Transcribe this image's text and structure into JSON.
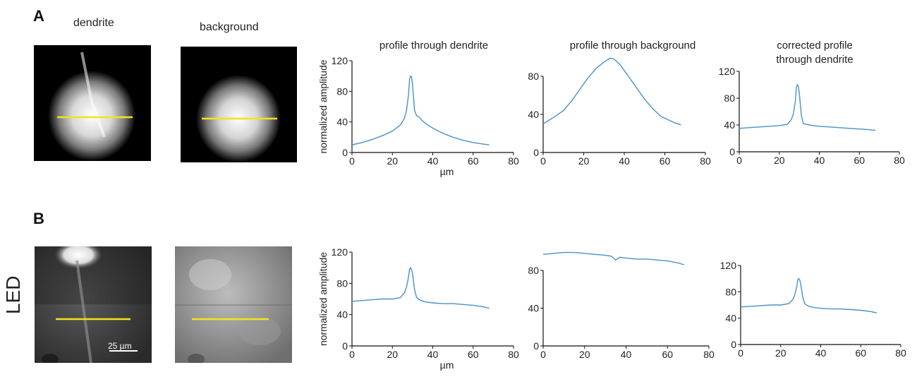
{
  "panels": {
    "A": {
      "letter": "A",
      "image_labels": [
        "dendrite",
        "background"
      ],
      "chart_titles": [
        "profile through dendrite",
        "profile through background",
        "corrected profile through dendrite"
      ],
      "side_label": ""
    },
    "B": {
      "letter": "B",
      "side_label": "LED",
      "scalebar": "25 µm"
    }
  },
  "colors": {
    "line": "#4a90c8",
    "marker": "#f2e21e",
    "axis": "#111111"
  },
  "chart_data": [
    {
      "type": "line",
      "title": "profile through dendrite",
      "xlabel": "µm",
      "ylabel": "normalized amplitude",
      "xlim": [
        0,
        80
      ],
      "ylim": [
        0,
        120
      ],
      "xticks": [
        0,
        20,
        40,
        60,
        80
      ],
      "yticks": [
        0,
        40,
        80,
        120
      ],
      "series": [
        {
          "x": [
            0,
            5,
            10,
            15,
            20,
            24,
            26,
            27,
            28,
            28.5,
            29,
            29.5,
            30,
            31,
            32,
            33,
            35,
            38,
            42,
            46,
            50,
            55,
            60,
            65,
            68
          ],
          "y": [
            10,
            13,
            17,
            22,
            28,
            36,
            45,
            55,
            75,
            95,
            100,
            99,
            88,
            55,
            48,
            47,
            41,
            35,
            29,
            24,
            20,
            16,
            13,
            11,
            10
          ]
        }
      ]
    },
    {
      "type": "line",
      "title": "profile through background",
      "xlabel": "",
      "ylabel": "",
      "xlim": [
        0,
        80
      ],
      "ylim": [
        0,
        120
      ],
      "xticks": [
        0,
        20,
        40,
        60,
        80
      ],
      "yticks": [
        0,
        40,
        80
      ],
      "series": [
        {
          "x": [
            0,
            3,
            6,
            10,
            14,
            18,
            22,
            26,
            30,
            33,
            35,
            38,
            42,
            46,
            50,
            54,
            58,
            62,
            65,
            68
          ],
          "y": [
            30,
            34,
            38,
            44,
            54,
            66,
            78,
            88,
            95,
            99,
            98,
            92,
            80,
            68,
            56,
            46,
            38,
            34,
            31,
            29
          ]
        }
      ]
    },
    {
      "type": "line",
      "title": "corrected profile through dendrite",
      "xlabel": "",
      "ylabel": "",
      "xlim": [
        0,
        80
      ],
      "ylim": [
        0,
        120
      ],
      "xticks": [
        0,
        20,
        40,
        60,
        80
      ],
      "yticks": [
        0,
        40,
        80,
        120
      ],
      "series": [
        {
          "x": [
            0,
            5,
            10,
            15,
            20,
            24,
            26,
            27,
            28,
            28.5,
            29,
            29.5,
            30,
            31,
            32,
            35,
            40,
            45,
            50,
            55,
            60,
            65,
            68
          ],
          "y": [
            35,
            36,
            37,
            38,
            39,
            41,
            48,
            56,
            75,
            95,
            100,
            98,
            88,
            55,
            42,
            40,
            38,
            37,
            36,
            35,
            34,
            33,
            32
          ]
        }
      ]
    },
    {
      "type": "line",
      "title": "",
      "xlabel": "µm",
      "ylabel": "normalized amplitude",
      "xlim": [
        0,
        80
      ],
      "ylim": [
        0,
        120
      ],
      "xticks": [
        0,
        20,
        40,
        60,
        80
      ],
      "yticks": [
        0,
        40,
        80,
        120
      ],
      "series": [
        {
          "x": [
            0,
            5,
            10,
            15,
            20,
            24,
            26,
            27,
            28,
            28.5,
            29,
            29.5,
            30,
            31,
            32,
            34,
            37,
            40,
            45,
            50,
            55,
            60,
            65,
            68
          ],
          "y": [
            57,
            58,
            59,
            60,
            60,
            62,
            68,
            75,
            88,
            98,
            100,
            98,
            92,
            72,
            62,
            58,
            56,
            55,
            54,
            54,
            53,
            52,
            50,
            48
          ]
        }
      ]
    },
    {
      "type": "line",
      "title": "",
      "xlabel": "",
      "ylabel": "",
      "xlim": [
        0,
        80
      ],
      "ylim": [
        0,
        120
      ],
      "xticks": [
        0,
        20,
        40,
        60,
        80
      ],
      "yticks": [
        0,
        40,
        80
      ],
      "series": [
        {
          "x": [
            0,
            5,
            10,
            15,
            20,
            25,
            30,
            33,
            35,
            37,
            40,
            45,
            50,
            55,
            60,
            65,
            68
          ],
          "y": [
            97,
            98,
            99,
            99,
            98,
            97,
            96,
            95,
            91,
            94,
            93,
            92,
            92,
            91,
            90,
            88,
            86
          ]
        }
      ]
    },
    {
      "type": "line",
      "title": "",
      "xlabel": "",
      "ylabel": "",
      "xlim": [
        0,
        80
      ],
      "ylim": [
        0,
        120
      ],
      "xticks": [
        0,
        20,
        40,
        60,
        80
      ],
      "yticks": [
        0,
        40,
        80,
        120
      ],
      "series": [
        {
          "x": [
            0,
            5,
            10,
            15,
            20,
            24,
            26,
            27,
            28,
            28.5,
            29,
            29.5,
            30,
            31,
            32,
            34,
            37,
            40,
            45,
            50,
            55,
            60,
            65,
            68
          ],
          "y": [
            57,
            58,
            59,
            60,
            60,
            62,
            68,
            75,
            88,
            98,
            100,
            98,
            92,
            72,
            62,
            58,
            56,
            55,
            54,
            54,
            53,
            52,
            50,
            48
          ]
        }
      ]
    }
  ]
}
